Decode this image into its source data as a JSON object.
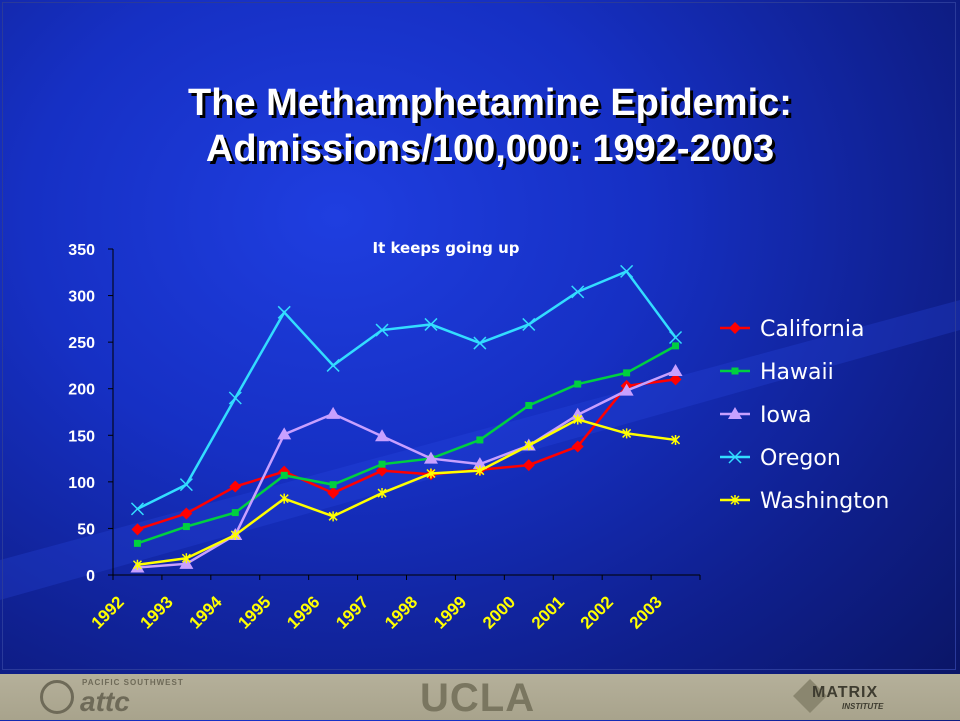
{
  "slide": {
    "title_line1": "The Methamphetamine Epidemic:",
    "title_line2": "Admissions/100,000: 1992-2003"
  },
  "footer": {
    "attc_small": "PACIFIC SOUTHWEST",
    "attc": "attc",
    "ucla": "UCLA",
    "matrix": "MATRIX",
    "matrix_sub": "INSTITUTE"
  },
  "chart_data": {
    "type": "line",
    "annotation": "It keeps going up",
    "categories": [
      "1992",
      "1993",
      "1994",
      "1995",
      "1996",
      "1997",
      "1998",
      "1999",
      "2000",
      "2001",
      "2002",
      "2003"
    ],
    "ylim": [
      0,
      350
    ],
    "yticks": [
      0,
      50,
      100,
      150,
      200,
      250,
      300,
      350
    ],
    "legend_position": "right",
    "series": [
      {
        "name": "California",
        "color": "#ff0000",
        "marker": "diamond",
        "values": [
          49,
          66,
          95,
          111,
          88,
          112,
          108,
          113,
          118,
          138,
          203,
          210
        ]
      },
      {
        "name": "Hawaii",
        "color": "#00d040",
        "marker": "square",
        "values": [
          34,
          52,
          67,
          107,
          97,
          119,
          125,
          145,
          182,
          205,
          217,
          246
        ]
      },
      {
        "name": "Iowa",
        "color": "#c8a0ff",
        "marker": "triangle",
        "values": [
          8,
          12,
          43,
          151,
          173,
          149,
          125,
          119,
          139,
          172,
          198,
          219
        ]
      },
      {
        "name": "Oregon",
        "color": "#33ddff",
        "marker": "x",
        "values": [
          71,
          97,
          190,
          282,
          225,
          263,
          269,
          249,
          269,
          304,
          326,
          255
        ]
      },
      {
        "name": "Washington",
        "color": "#ffff00",
        "marker": "star",
        "values": [
          11,
          18,
          43,
          82,
          63,
          88,
          109,
          112,
          139,
          167,
          152,
          145
        ]
      }
    ]
  }
}
